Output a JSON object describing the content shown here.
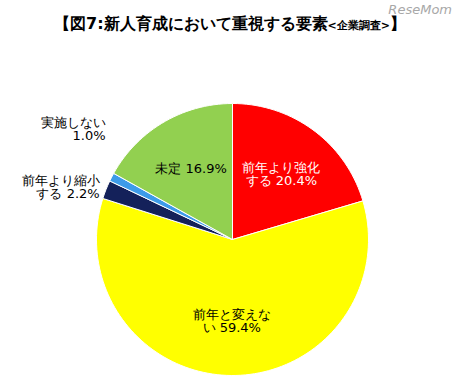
{
  "chart_data": {
    "type": "pie",
    "title": "【図7:新人育成において重視する要素<企業調査>】",
    "annotations": [
      "ReseMom"
    ],
    "categories": [
      "前年より強化する",
      "前年と変えない",
      "前年より縮小する",
      "実施しない",
      "未定"
    ],
    "values": [
      20.4,
      59.4,
      2.2,
      1.0,
      16.9
    ],
    "value_labels": [
      "20.4%",
      "59.4%",
      "2.2%",
      "1.0%",
      "16.9%"
    ],
    "colors": [
      "#ff0000",
      "#ffff00",
      "#14215a",
      "#3d9be9",
      "#92d050"
    ],
    "data_labels": true
  }
}
